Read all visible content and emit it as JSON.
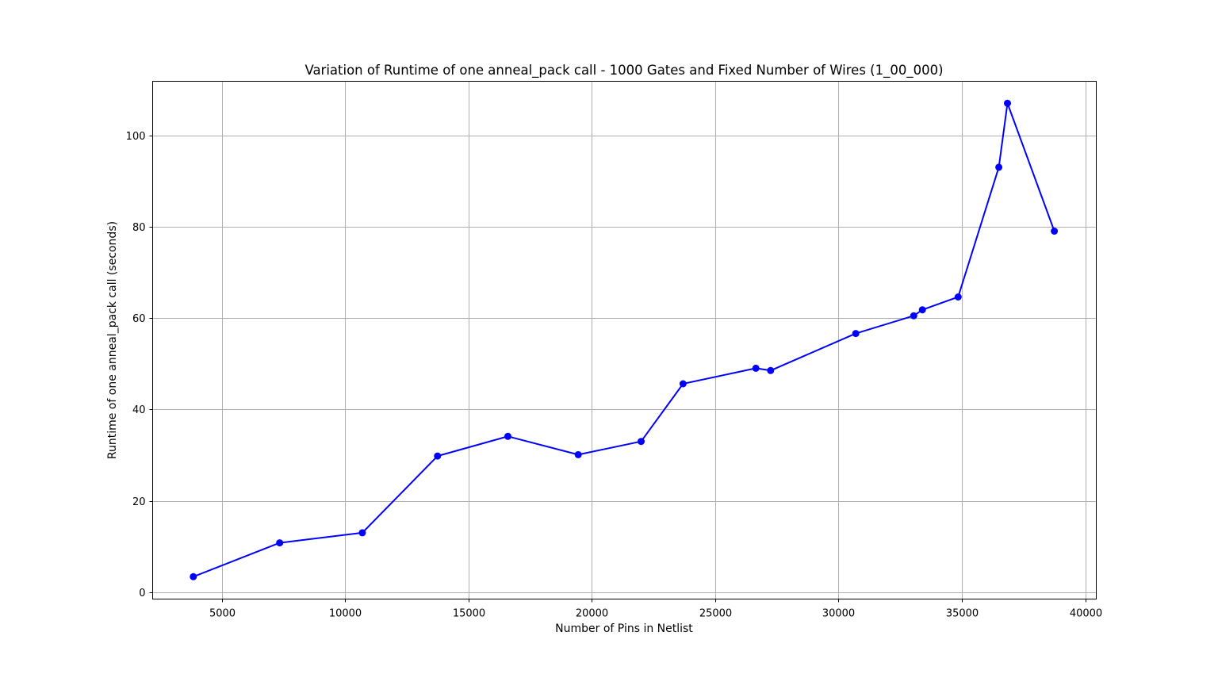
{
  "chart_data": {
    "type": "line",
    "title": "Variation of Runtime of one anneal_pack call - 1000 Gates and Fixed Number of Wires (1_00_000)",
    "xlabel": "Number of Pins in Netlist",
    "ylabel": "Runtime of one anneal_pack call (seconds)",
    "xlim": [
      2200,
      40450
    ],
    "ylim": [
      -1.5,
      111.8
    ],
    "xticks": [
      5000,
      10000,
      15000,
      20000,
      25000,
      30000,
      35000,
      40000
    ],
    "yticks": [
      0,
      20,
      40,
      60,
      80,
      100
    ],
    "grid": true,
    "colors": {
      "line": "#0000ff",
      "marker": "#0000ff",
      "grid": "#b0b0b0"
    },
    "series": [
      {
        "x": [
          3850,
          7350,
          10700,
          13750,
          16600,
          19450,
          22000,
          23700,
          26650,
          27250,
          30700,
          33050,
          33400,
          34850,
          36500,
          36850,
          38750
        ],
        "y": [
          3.4,
          10.8,
          13.0,
          29.8,
          34.1,
          30.1,
          33.0,
          45.6,
          49.0,
          48.5,
          56.6,
          60.5,
          61.8,
          64.6,
          93.0,
          107.0,
          79.0
        ]
      }
    ]
  }
}
